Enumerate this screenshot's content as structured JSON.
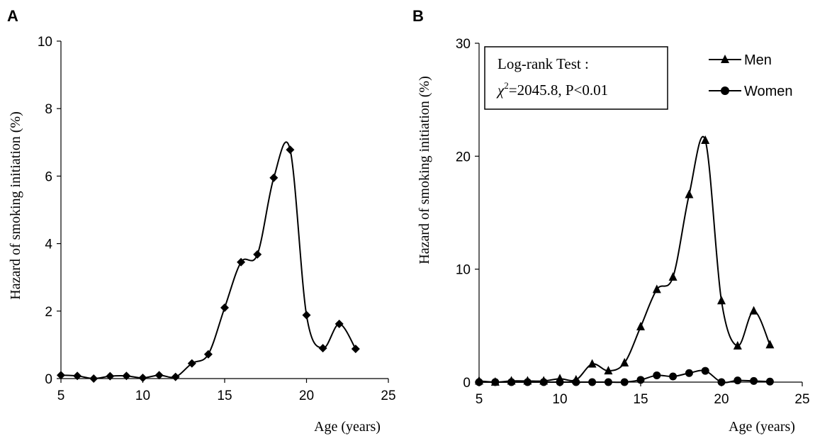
{
  "chart_data": [
    {
      "panel": "A",
      "type": "line",
      "title": "",
      "xlabel": "Age (years)",
      "ylabel": "Hazard of smoking initiation (%)",
      "xlim": [
        5,
        25
      ],
      "ylim": [
        0,
        10
      ],
      "xticks": [
        5,
        10,
        15,
        20,
        25
      ],
      "yticks": [
        0,
        2,
        4,
        6,
        8,
        10
      ],
      "grid": false,
      "series": [
        {
          "marker": "diamond",
          "color": "#000000",
          "x": [
            5,
            6,
            7,
            8,
            9,
            10,
            11,
            12,
            13,
            14,
            15,
            16,
            17,
            18,
            19,
            20,
            21,
            22,
            23
          ],
          "y": [
            0.1,
            0.08,
            0.0,
            0.07,
            0.08,
            0.02,
            0.1,
            0.05,
            0.45,
            0.72,
            2.1,
            3.45,
            3.68,
            5.95,
            6.78,
            1.88,
            0.9,
            1.62,
            0.88
          ]
        }
      ]
    },
    {
      "panel": "B",
      "type": "line",
      "title": "",
      "xlabel": "Age (years)",
      "ylabel": "Hazard of smoking initiation (%)",
      "xlim": [
        5,
        25
      ],
      "ylim": [
        0,
        30
      ],
      "xticks": [
        5,
        10,
        15,
        20,
        25
      ],
      "yticks": [
        0,
        10,
        20,
        30
      ],
      "grid": false,
      "legend": "top-right",
      "annotation": {
        "line1": "Log-rank Test :",
        "chi_symbol": "χ",
        "chi_sup": "2",
        "line2_rest": "=2045.8,  P<0.01"
      },
      "series": [
        {
          "name": "Men",
          "marker": "triangle",
          "color": "#000000",
          "x": [
            5,
            6,
            7,
            8,
            9,
            10,
            11,
            12,
            13,
            14,
            15,
            16,
            17,
            18,
            19,
            20,
            21,
            22,
            23
          ],
          "y": [
            0.1,
            0.0,
            0.1,
            0.1,
            0.1,
            0.3,
            0.2,
            1.6,
            1.0,
            1.7,
            4.9,
            8.2,
            9.3,
            16.6,
            21.4,
            7.2,
            3.2,
            6.3,
            3.3
          ]
        },
        {
          "name": "Women",
          "marker": "circle",
          "color": "#000000",
          "x": [
            5,
            6,
            7,
            8,
            9,
            10,
            11,
            12,
            13,
            14,
            15,
            16,
            17,
            18,
            19,
            20,
            21,
            22,
            23
          ],
          "y": [
            0.0,
            0.0,
            0.0,
            0.0,
            0.0,
            0.0,
            0.0,
            0.0,
            0.0,
            0.0,
            0.2,
            0.6,
            0.5,
            0.8,
            1.0,
            0.0,
            0.15,
            0.1,
            0.05
          ]
        }
      ]
    }
  ]
}
